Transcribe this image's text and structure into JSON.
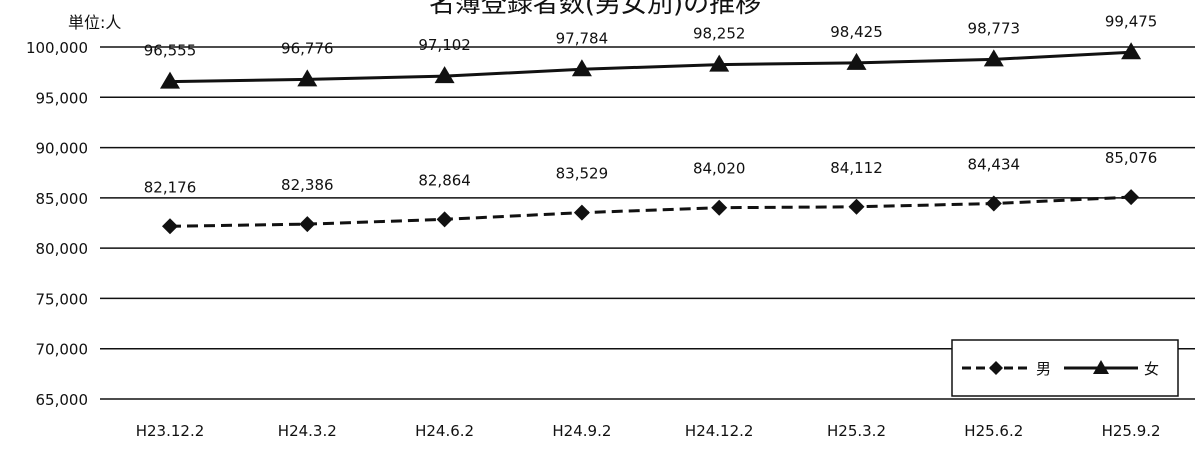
{
  "chart_data": {
    "type": "line",
    "title": "名簿登録者数(男女別)の推移",
    "unit_label": "単位:人",
    "categories": [
      "H23.12.2",
      "H24.3.2",
      "H24.6.2",
      "H24.9.2",
      "H24.12.2",
      "H25.3.2",
      "H25.6.2",
      "H25.9.2"
    ],
    "series": [
      {
        "name": "男",
        "values": [
          82176,
          82386,
          82864,
          83529,
          84020,
          84112,
          84434,
          85076
        ],
        "labels": [
          "82,176",
          "82,386",
          "82,864",
          "83,529",
          "84,020",
          "84,112",
          "84,434",
          "85,076"
        ],
        "line": "dashed",
        "marker": "diamond",
        "color": "#111111"
      },
      {
        "name": "女",
        "values": [
          96555,
          96776,
          97102,
          97784,
          98252,
          98425,
          98773,
          99475
        ],
        "labels": [
          "96,555",
          "96,776",
          "97,102",
          "97,784",
          "98,252",
          "98,425",
          "98,773",
          "99,475"
        ],
        "line": "solid",
        "marker": "triangle",
        "color": "#111111"
      }
    ],
    "ylim": [
      65000,
      100000
    ],
    "yticks": [
      65000,
      70000,
      75000,
      80000,
      85000,
      90000,
      95000,
      100000
    ],
    "ytick_labels": [
      "65,000",
      "70,000",
      "75,000",
      "80,000",
      "85,000",
      "90,000",
      "95,000",
      "100,000"
    ],
    "grid": true,
    "legend_position": "bottom-right"
  }
}
